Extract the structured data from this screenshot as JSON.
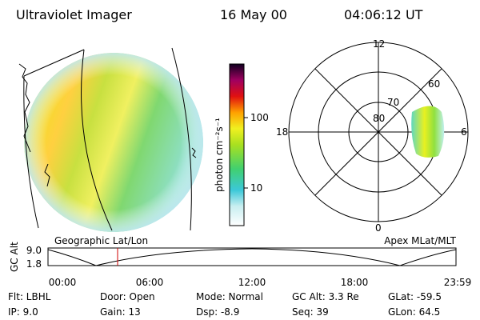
{
  "header": {
    "title": "Ultraviolet Imager",
    "date": "16 May 00",
    "time": "04:06:12 UT"
  },
  "colorbar": {
    "label": "photon cm⁻²s⁻¹",
    "ticks": [
      "100",
      "10"
    ]
  },
  "polar": {
    "hours": [
      "12",
      "18",
      "6",
      "0"
    ],
    "latitudes": [
      "80",
      "70",
      "60"
    ]
  },
  "timeline": {
    "left_title": "Geographic Lat/Lon",
    "right_title": "Apex MLat/MLT",
    "axis_label": "GC Alt",
    "y_labels": [
      "9.0",
      "1.8"
    ],
    "times": [
      "00:00",
      "06:00",
      "12:00",
      "18:00",
      "23:59"
    ]
  },
  "info": {
    "row1": [
      "Flt: LBHL",
      "Door: Open",
      "Mode: Normal",
      "GC Alt: 3.3 Re",
      "GLat: -59.5"
    ],
    "row2": [
      "IP: 9.0",
      "Gain: 13",
      "Dsp: -8.9",
      "Seq: 39",
      "GLon: 64.5"
    ]
  }
}
